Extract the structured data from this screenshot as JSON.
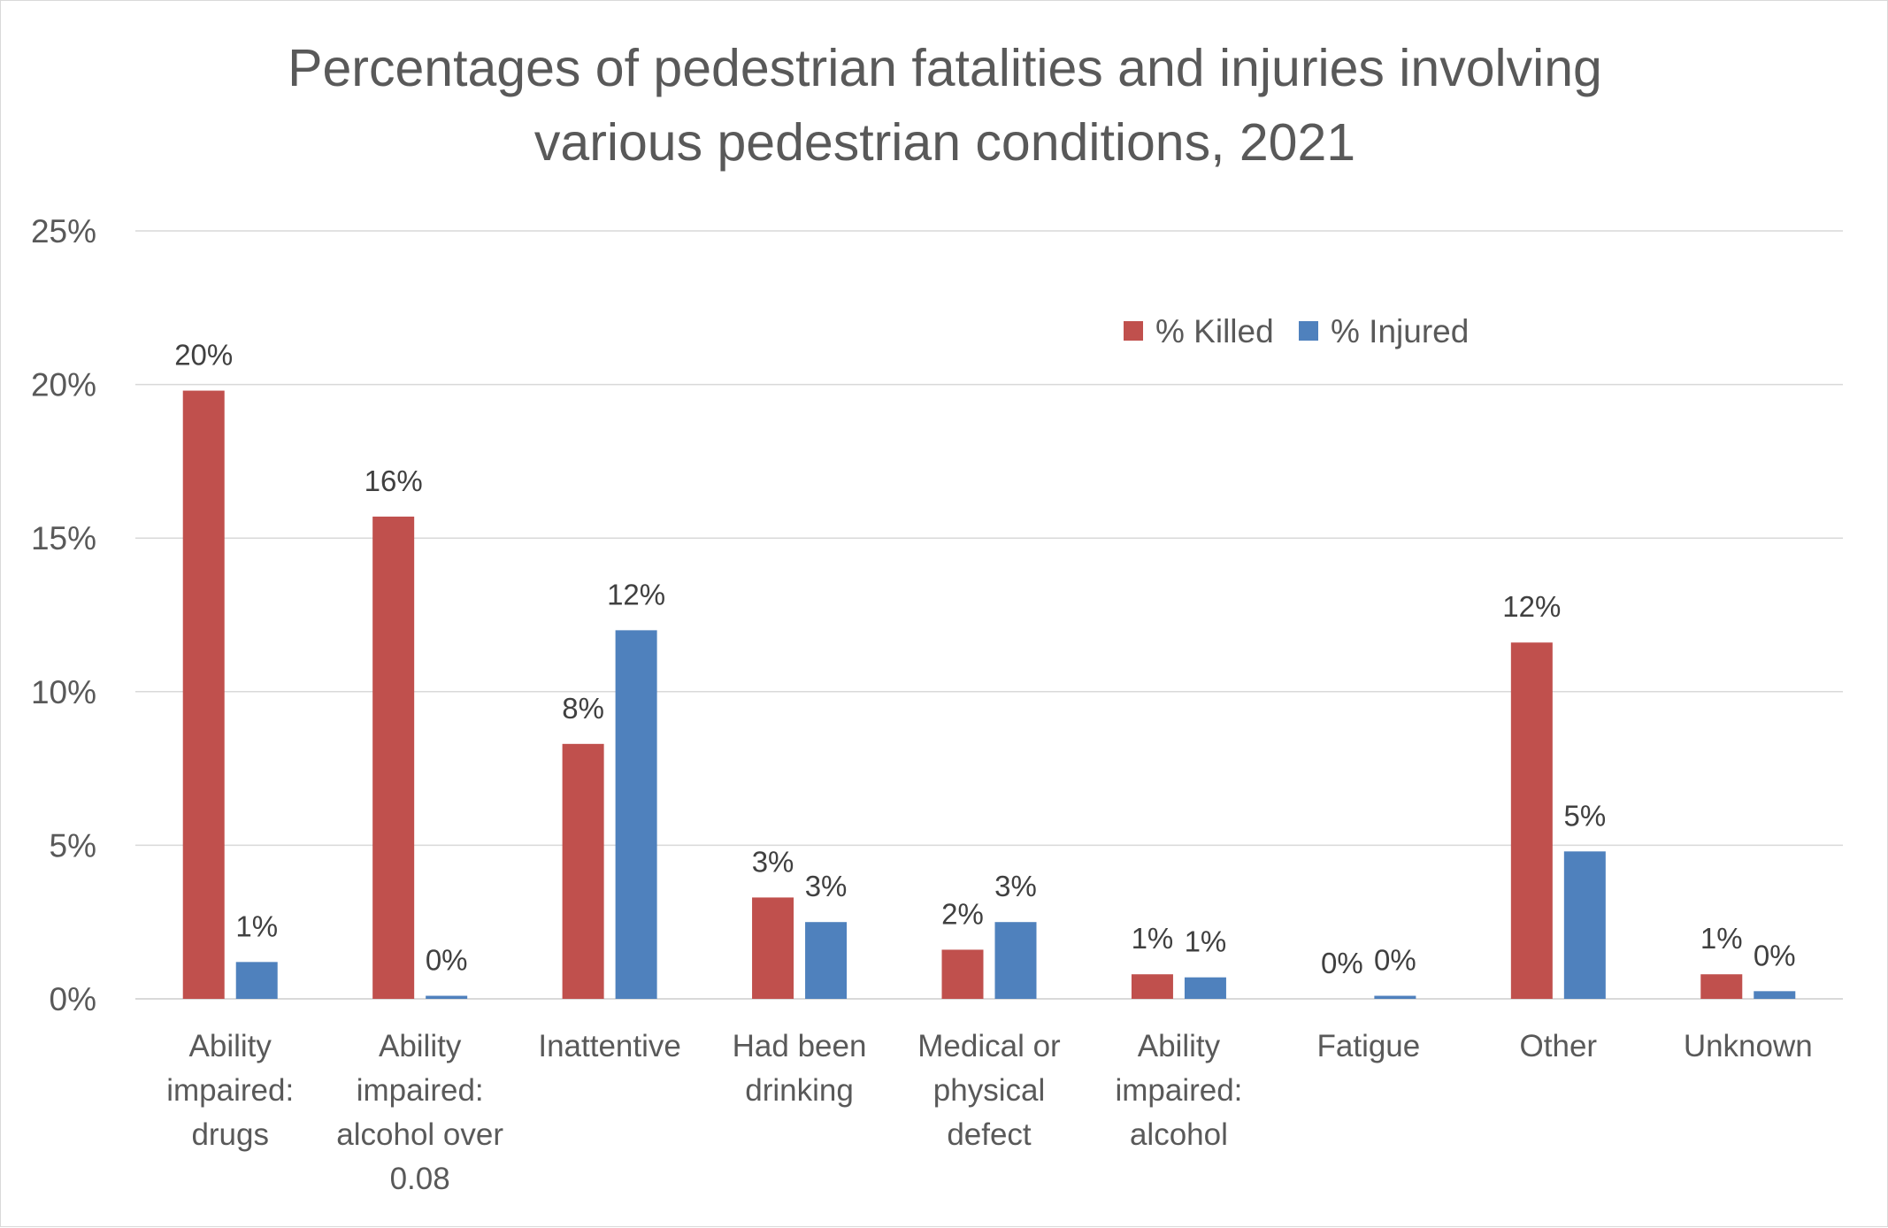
{
  "chart_data": {
    "type": "bar",
    "title": "Percentages of pedestrian fatalities and injuries involving various pedestrian conditions, 2021",
    "title_lines": [
      "Percentages of pedestrian fatalities and injuries involving",
      "various pedestrian conditions, 2021"
    ],
    "categories": [
      "Ability impaired: drugs",
      "Ability impaired: alcohol over 0.08",
      "Inattentive",
      "Had been drinking",
      "Medical or physical defect",
      "Ability impaired: alcohol",
      "Fatigue",
      "Other",
      "Unknown"
    ],
    "category_lines": [
      [
        "Ability",
        "impaired:",
        "drugs"
      ],
      [
        "Ability",
        "impaired:",
        "alcohol over",
        "0.08"
      ],
      [
        "Inattentive"
      ],
      [
        "Had been",
        "drinking"
      ],
      [
        "Medical or",
        "physical",
        "defect"
      ],
      [
        "Ability",
        "impaired:",
        "alcohol"
      ],
      [
        "Fatigue"
      ],
      [
        "Other"
      ],
      [
        "Unknown"
      ]
    ],
    "series": [
      {
        "name": "% Killed",
        "color": "#c0504d",
        "values": [
          19.8,
          15.7,
          8.3,
          3.3,
          1.6,
          0.8,
          0.0,
          11.6,
          0.8
        ],
        "labels": [
          "20%",
          "16%",
          "8%",
          "3%",
          "2%",
          "1%",
          "0%",
          "12%",
          "1%"
        ]
      },
      {
        "name": "% Injured",
        "color": "#4f81bd",
        "values": [
          1.2,
          0.1,
          12.0,
          2.5,
          2.5,
          0.7,
          0.1,
          4.8,
          0.25
        ],
        "labels": [
          "1%",
          "0%",
          "12%",
          "3%",
          "3%",
          "1%",
          "0%",
          "5%",
          "0%"
        ]
      }
    ],
    "y_ticks": [
      0,
      5,
      10,
      15,
      20,
      25
    ],
    "y_tick_labels": [
      "0%",
      "5%",
      "10%",
      "15%",
      "20%",
      "25%"
    ],
    "ylim": [
      0,
      25
    ],
    "grid": true,
    "legend_position": "top-right",
    "colors": {
      "title": "#595959",
      "axis_text": "#595959",
      "label_text": "#404040",
      "gridline": "#d9d9d9"
    }
  }
}
